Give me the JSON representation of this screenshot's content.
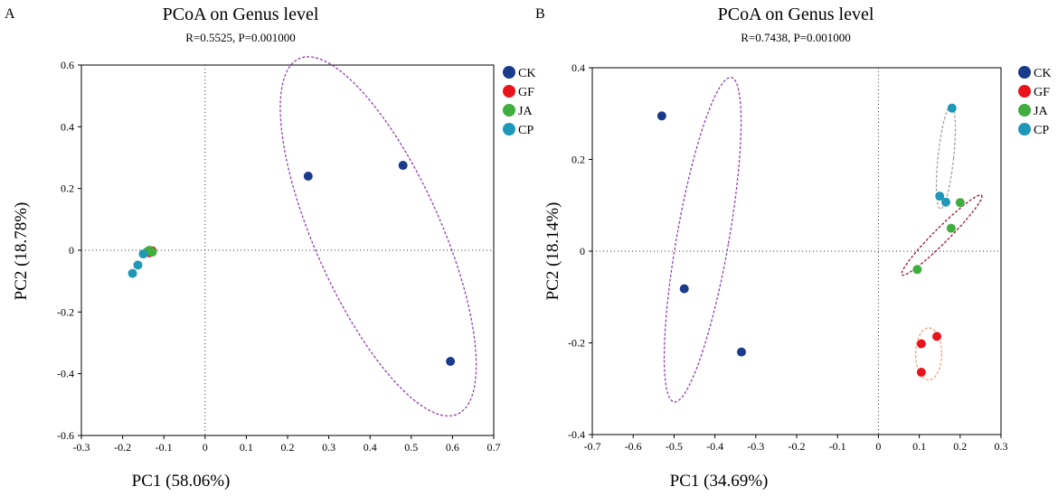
{
  "chart_data": [
    {
      "panel_label": "A",
      "type": "scatter",
      "title": "PCoA on Genus level",
      "subtitle": "R=0.5525, P=0.001000",
      "xlabel": "PC1 (58.06%)",
      "ylabel": "PC2 (18.78%)",
      "xlim": [
        -0.3,
        0.7
      ],
      "ylim": [
        -0.6,
        0.6
      ],
      "xticks": [
        -0.3,
        -0.2,
        -0.1,
        0,
        0.1,
        0.2,
        0.3,
        0.4,
        0.5,
        0.6,
        0.7
      ],
      "yticks": [
        -0.6,
        -0.4,
        -0.2,
        0,
        0.2,
        0.4,
        0.6
      ],
      "xtick_labels": [
        "-0.3",
        "-0.2",
        "-0.1",
        "0",
        "0.1",
        "0.2",
        "0.3",
        "0.4",
        "0.5",
        "0.6",
        "0.7"
      ],
      "ytick_labels": [
        "-0.6",
        "-0.4",
        "-0.2",
        "0",
        "0.2",
        "0.4",
        "0.6"
      ],
      "legend_position": "top-right outside",
      "reference_lines": {
        "x": 0,
        "y": 0,
        "style": "dotted"
      },
      "series": [
        {
          "name": "CK",
          "color": "#1a3a8c",
          "points": [
            [
              0.25,
              0.24
            ],
            [
              0.48,
              0.275
            ],
            [
              0.595,
              -0.36
            ]
          ],
          "ellipse": {
            "center": [
              0.42,
              0.045
            ],
            "rx_data": 0.175,
            "ry_data": 0.54,
            "angle_deg": -24,
            "color": "#8e44ad"
          }
        },
        {
          "name": "GF",
          "color": "#e8141b",
          "points": [
            [
              -0.135,
              -0.008
            ],
            [
              -0.128,
              -0.002
            ]
          ]
        },
        {
          "name": "JA",
          "color": "#3fad3f",
          "points": [
            [
              -0.135,
              0.0
            ],
            [
              -0.128,
              -0.006
            ],
            [
              -0.14,
              -0.004
            ]
          ]
        },
        {
          "name": "CP",
          "color": "#1f97b8",
          "points": [
            [
              -0.15,
              -0.012
            ],
            [
              -0.163,
              -0.048
            ],
            [
              -0.176,
              -0.075
            ]
          ]
        }
      ]
    },
    {
      "panel_label": "B",
      "type": "scatter",
      "title": "PCoA on Genus level",
      "subtitle": "R=0.7438, P=0.001000",
      "xlabel": "PC1 (34.69%)",
      "ylabel": "PC2 (18.14%)",
      "xlim": [
        -0.7,
        0.3
      ],
      "ylim": [
        -0.4,
        0.4
      ],
      "xticks": [
        -0.7,
        -0.6,
        -0.5,
        -0.4,
        -0.3,
        -0.2,
        -0.1,
        0,
        0.1,
        0.2,
        0.3
      ],
      "yticks": [
        -0.4,
        -0.2,
        0,
        0.2,
        0.4
      ],
      "xtick_labels": [
        "-0.7",
        "-0.6",
        "-0.5",
        "-0.4",
        "-0.3",
        "-0.2",
        "-0.1",
        "0",
        "0.1",
        "0.2",
        "0.3"
      ],
      "ytick_labels": [
        "-0.4",
        "-0.2",
        "0",
        "0.2",
        "0.4"
      ],
      "legend_position": "top-right outside",
      "reference_lines": {
        "x": 0,
        "y": 0,
        "style": "dotted"
      },
      "series": [
        {
          "name": "CK",
          "color": "#1a3a8c",
          "points": [
            [
              -0.53,
              0.295
            ],
            [
              -0.475,
              -0.082
            ],
            [
              -0.335,
              -0.22
            ]
          ],
          "ellipse": {
            "center": [
              -0.43,
              0.025
            ],
            "rx_data": 0.06,
            "ry_data": 0.38,
            "angle_deg": 10,
            "color": "#8e44ad"
          }
        },
        {
          "name": "GF",
          "color": "#e8141b",
          "points": [
            [
              0.105,
              -0.202
            ],
            [
              0.143,
              -0.186
            ],
            [
              0.105,
              -0.264
            ]
          ],
          "ellipse": {
            "center": [
              0.123,
              -0.224
            ],
            "rx_data": 0.03,
            "ry_data": 0.06,
            "angle_deg": 0,
            "color": "#f4a07a"
          }
        },
        {
          "name": "JA",
          "color": "#3fad3f",
          "points": [
            [
              0.095,
              -0.04
            ],
            [
              0.178,
              0.05
            ],
            [
              0.2,
              0.106
            ]
          ],
          "ellipse": {
            "center": [
              0.155,
              0.035
            ],
            "rx_data": 0.13,
            "ry_data": 0.017,
            "angle_deg": -45,
            "color": "#a0142b"
          }
        },
        {
          "name": "CP",
          "color": "#1f97b8",
          "points": [
            [
              0.15,
              0.12
            ],
            [
              0.165,
              0.107
            ],
            [
              0.18,
              0.312
            ]
          ],
          "ellipse": {
            "center": [
              0.165,
              0.205
            ],
            "rx_data": 0.018,
            "ry_data": 0.12,
            "angle_deg": 6,
            "color": "#a0a0a0"
          }
        }
      ]
    }
  ]
}
